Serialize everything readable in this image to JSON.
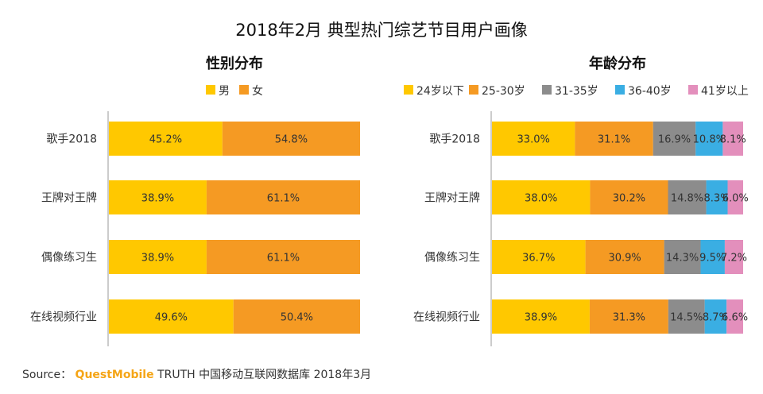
{
  "title": "2018年2月 典型热门综艺节目用户画像",
  "source": {
    "prefix": "Source：",
    "brand": "QuestMobile",
    "rest": "TRUTH 中国移动互联网数据库 2018年3月"
  },
  "colors": {
    "yellow": "#FFC800",
    "orange": "#F59A23",
    "gray": "#8C8C8C",
    "blue": "#3AAEE3",
    "pink": "#E38FBC"
  },
  "chart_data": [
    {
      "type": "bar",
      "stacked": true,
      "orientation": "horizontal",
      "title": "性别分布",
      "categories": [
        "歌手2018",
        "王牌对王牌",
        "偶像练习生",
        "在线视频行业"
      ],
      "series": [
        {
          "name": "男",
          "color": "#FFC800",
          "values": [
            45.2,
            38.9,
            38.9,
            49.6
          ],
          "labels": [
            "45.2%",
            "38.9%",
            "38.9%",
            "49.6%"
          ]
        },
        {
          "name": "女",
          "color": "#F59A23",
          "values": [
            54.8,
            61.1,
            61.1,
            50.4
          ],
          "labels": [
            "54.8%",
            "61.1%",
            "61.1%",
            "50.4%"
          ]
        }
      ]
    },
    {
      "type": "bar",
      "stacked": true,
      "orientation": "horizontal",
      "title": "年龄分布",
      "categories": [
        "歌手2018",
        "王牌对王牌",
        "偶像练习生",
        "在线视频行业"
      ],
      "series": [
        {
          "name": "24岁以下",
          "color": "#FFC800",
          "values": [
            33.0,
            38.0,
            36.7,
            38.9
          ],
          "labels": [
            "33.0%",
            "38.0%",
            "36.7%",
            "38.9%"
          ]
        },
        {
          "name": "25-30岁",
          "color": "#F59A23",
          "values": [
            31.1,
            30.2,
            30.9,
            31.3
          ],
          "labels": [
            "31.1%",
            "30.2%",
            "30.9%",
            "31.3%"
          ]
        },
        {
          "name": "31-35岁",
          "color": "#8C8C8C",
          "values": [
            16.9,
            14.8,
            14.3,
            14.5
          ],
          "labels": [
            "16.9%",
            "14.8%",
            "14.3%",
            "14.5%"
          ]
        },
        {
          "name": "36-40岁",
          "color": "#3AAEE3",
          "values": [
            10.8,
            8.3,
            9.5,
            8.7
          ],
          "labels": [
            "10.8%",
            "8.3%",
            "9.5%",
            "8.7%"
          ]
        },
        {
          "name": "41岁以上",
          "color": "#E38FBC",
          "values": [
            8.1,
            6.0,
            7.2,
            6.6
          ],
          "labels": [
            "8.1%",
            "6.0%",
            "7.2%",
            "6.6%"
          ]
        }
      ]
    }
  ]
}
